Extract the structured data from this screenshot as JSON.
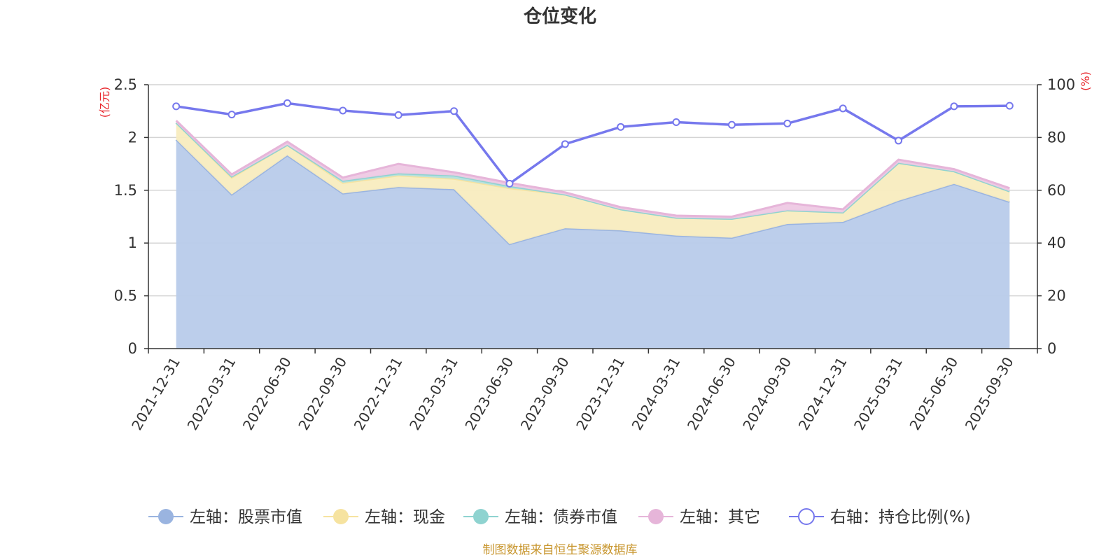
{
  "chart_data": {
    "type": "area",
    "title": "仓位变化",
    "source_note": "制图数据来自恒生聚源数据库",
    "left_axis": {
      "label": "(亿元)",
      "ylim": [
        0,
        2.5
      ],
      "ticks": [
        "0",
        "0.5",
        "1",
        "1.5",
        "2",
        "2.5"
      ]
    },
    "right_axis": {
      "label": "(%)",
      "ylim": [
        0,
        100
      ],
      "ticks": [
        "0",
        "20",
        "40",
        "60",
        "80",
        "100"
      ]
    },
    "categories": [
      "2021-12-31",
      "2022-03-31",
      "2022-06-30",
      "2022-09-30",
      "2022-12-31",
      "2023-03-31",
      "2023-06-30",
      "2023-09-30",
      "2023-12-31",
      "2024-03-31",
      "2024-06-30",
      "2024-09-30",
      "2024-12-31",
      "2025-03-31",
      "2025-06-30",
      "2025-09-30"
    ],
    "series": [
      {
        "name": "左轴：股票市值",
        "axis": "left",
        "kind": "stacked-area",
        "color": "#9ab4e0",
        "fill": "#b8cbea",
        "values": [
          1.98,
          1.46,
          1.83,
          1.47,
          1.53,
          1.51,
          0.99,
          1.14,
          1.12,
          1.07,
          1.05,
          1.18,
          1.2,
          1.4,
          1.56,
          1.39
        ]
      },
      {
        "name": "左轴：现金",
        "axis": "left",
        "kind": "stacked-area",
        "color": "#f6e3a0",
        "fill": "#f8ecbf",
        "values": [
          0.16,
          0.16,
          0.1,
          0.1,
          0.11,
          0.1,
          0.53,
          0.32,
          0.2,
          0.17,
          0.18,
          0.13,
          0.09,
          0.36,
          0.12,
          0.1
        ]
      },
      {
        "name": "左轴：债券市值",
        "axis": "left",
        "kind": "stacked-area",
        "color": "#8fd3d0",
        "fill": "#b3e0de",
        "values": [
          0.0,
          0.01,
          0.0,
          0.02,
          0.02,
          0.03,
          0.02,
          0.0,
          0.0,
          0.0,
          0.0,
          0.0,
          0.0,
          0.0,
          0.0,
          0.0
        ]
      },
      {
        "name": "左轴：其它",
        "axis": "left",
        "kind": "stacked-area",
        "color": "#e6b5d9",
        "fill": "#eec9e4",
        "values": [
          0.02,
          0.02,
          0.03,
          0.03,
          0.09,
          0.03,
          0.03,
          0.02,
          0.02,
          0.02,
          0.02,
          0.07,
          0.03,
          0.03,
          0.02,
          0.03
        ]
      },
      {
        "name": "右轴：持仓比例(%)",
        "axis": "right",
        "kind": "line",
        "color": "#7678ed",
        "values": [
          91.8,
          88.7,
          93.0,
          90.2,
          88.5,
          90.0,
          62.5,
          77.5,
          84.0,
          85.8,
          84.8,
          85.3,
          91.0,
          78.8,
          91.8,
          92.0
        ]
      }
    ]
  }
}
